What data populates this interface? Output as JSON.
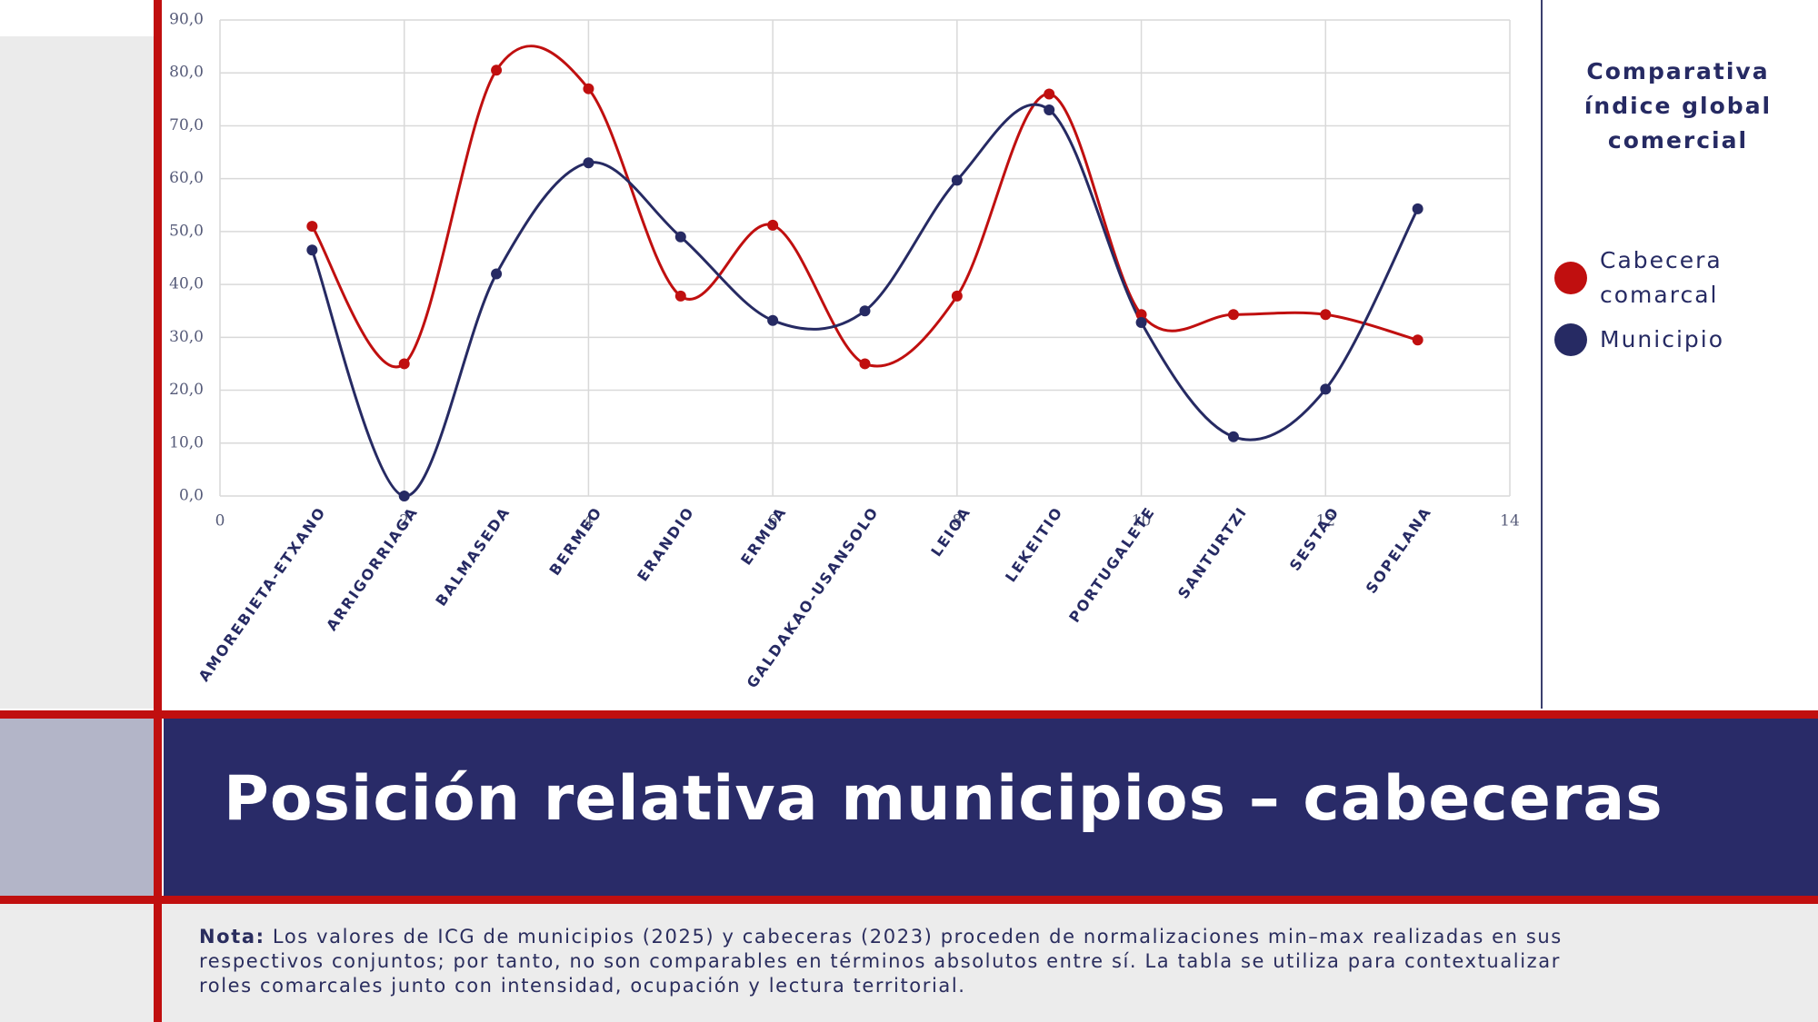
{
  "chart_data": {
    "type": "scatter",
    "legend_title": "Comparativa índice global comercial",
    "x": [
      1,
      2,
      3,
      4,
      5,
      6,
      7,
      8,
      9,
      10,
      11,
      12,
      13
    ],
    "categories": [
      "AMOREBIETA-ETXANO",
      "ARRIGORRIAGA",
      "BALMASEDA",
      "BERMEO",
      "ERANDIO",
      "ERMUA",
      "GALDAKAO-USANSOLO",
      "LEIOA",
      "LEKEITIO",
      "PORTUGALETE",
      "SANTURTZI",
      "SESTAO",
      "SOPELANA"
    ],
    "series": [
      {
        "name": "Cabecera comarcal",
        "color": "#c00f0f",
        "values": [
          51.0,
          25.0,
          80.5,
          77.0,
          37.8,
          51.2,
          25.0,
          37.8,
          76.0,
          34.3,
          34.3,
          34.3,
          29.5
        ]
      },
      {
        "name": "Municipio",
        "color": "#262a63",
        "values": [
          46.5,
          0.0,
          42.0,
          63.0,
          49.0,
          33.2,
          35.0,
          59.7,
          73.0,
          32.8,
          11.2,
          20.2,
          54.3
        ]
      }
    ],
    "xlim": [
      0,
      14
    ],
    "xticks": [
      0,
      2,
      4,
      6,
      8,
      10,
      12,
      14
    ],
    "ylim": [
      0,
      90
    ],
    "yticks": [
      {
        "value": 0,
        "label": "0,0"
      },
      {
        "value": 10,
        "label": "10,0"
      },
      {
        "value": 20,
        "label": "20,0"
      },
      {
        "value": 30,
        "label": "30,0"
      },
      {
        "value": 40,
        "label": "40,0"
      },
      {
        "value": 50,
        "label": "50,0"
      },
      {
        "value": 60,
        "label": "60,0"
      },
      {
        "value": 70,
        "label": "70,0"
      },
      {
        "value": 80,
        "label": "80,0"
      },
      {
        "value": 90,
        "label": "90,0"
      }
    ],
    "grid": true,
    "smooth": true
  },
  "banner": {
    "title": "Posición relativa municipios – cabeceras"
  },
  "note": {
    "label": "Nota:",
    "text": "Los valores de ICG de municipios (2025) y cabeceras (2023) proceden de normalizaciones min–max realizadas en sus respectivos conjuntos; por tanto, no son comparables en términos absolutos entre sí. La tabla se utiliza para contextualizar roles comarcales junto con intensidad, ocupación y lectura territorial."
  }
}
